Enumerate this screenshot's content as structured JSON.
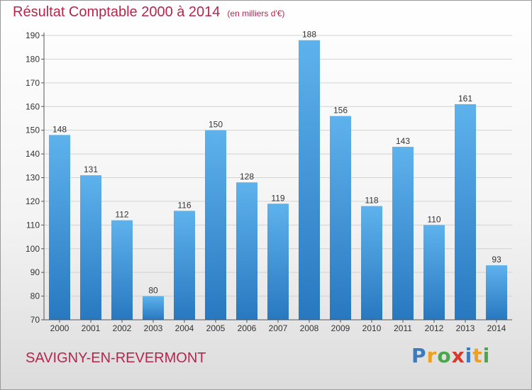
{
  "title": "Résultat Comptable 2000 à 2014",
  "unit": "(en milliers d'€)",
  "location": "SAVIGNY-EN-REVERMONT",
  "logo": {
    "letters": [
      {
        "ch": "P",
        "color": "#3a7bbf"
      },
      {
        "ch": "r",
        "color": "#f0a020"
      },
      {
        "ch": "o",
        "color": "#4aa84a"
      },
      {
        "ch": "x",
        "color": "#d63a2a"
      },
      {
        "ch": "i",
        "color": "#3a7bbf"
      },
      {
        "ch": "t",
        "color": "#f0a020"
      },
      {
        "ch": "i",
        "color": "#4aa84a"
      }
    ]
  },
  "colors": {
    "title": "#b5264d",
    "bar_light": "#5eb2ec",
    "bar_dark": "#2878c0",
    "grid": "#d2d2d2",
    "axis": "#555555"
  },
  "chart_data": {
    "type": "bar",
    "categories": [
      "2000",
      "2001",
      "2002",
      "2003",
      "2004",
      "2005",
      "2006",
      "2007",
      "2008",
      "2009",
      "2010",
      "2011",
      "2012",
      "2013",
      "2014"
    ],
    "values": [
      148,
      131,
      112,
      80,
      116,
      150,
      128,
      119,
      188,
      156,
      118,
      143,
      110,
      161,
      93
    ],
    "ylim": [
      70,
      190
    ],
    "yticks": [
      70,
      80,
      90,
      100,
      110,
      120,
      130,
      140,
      150,
      160,
      170,
      180,
      190
    ],
    "grid": true,
    "data_labels": true
  }
}
